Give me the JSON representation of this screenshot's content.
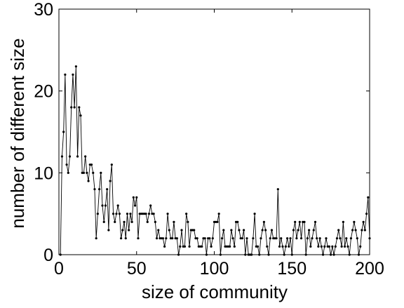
{
  "chart_data": {
    "type": "line",
    "title": "",
    "xlabel": "size of community",
    "ylabel": "number of different size",
    "xlim": [
      0,
      200
    ],
    "ylim": [
      0,
      30
    ],
    "xticks": [
      0,
      50,
      100,
      150,
      200
    ],
    "yticks": [
      0,
      10,
      20,
      30
    ],
    "grid": false,
    "legend": "none",
    "line_color": "#000000",
    "series": [
      {
        "x": [
          1,
          2,
          3,
          4,
          5,
          6,
          7,
          8,
          9,
          10,
          11,
          12,
          13,
          14,
          15,
          16,
          17,
          18,
          19,
          20,
          21,
          22,
          23,
          24,
          25,
          26,
          27,
          28,
          29,
          30,
          31,
          32,
          33,
          34,
          35,
          36,
          37,
          38,
          39,
          40,
          41,
          42,
          43,
          44,
          45,
          46,
          47,
          48,
          49,
          50,
          51,
          52,
          53,
          54,
          55,
          56,
          57,
          58,
          59,
          60,
          61,
          62,
          63,
          64,
          65,
          66,
          67,
          68,
          69,
          70,
          71,
          72,
          73,
          74,
          75,
          76,
          77,
          78,
          79,
          80,
          81,
          82,
          83,
          84,
          85,
          86,
          87,
          88,
          89,
          90,
          91,
          92,
          93,
          94,
          95,
          96,
          97,
          98,
          99,
          100,
          101,
          102,
          103,
          104,
          105,
          106,
          107,
          108,
          109,
          110,
          111,
          112,
          113,
          114,
          115,
          116,
          117,
          118,
          119,
          120,
          121,
          122,
          123,
          124,
          125,
          126,
          127,
          128,
          129,
          130,
          131,
          132,
          133,
          134,
          135,
          136,
          137,
          138,
          139,
          140,
          141,
          142,
          143,
          144,
          145,
          146,
          147,
          148,
          149,
          150,
          151,
          152,
          153,
          154,
          155,
          156,
          157,
          158,
          159,
          160,
          161,
          162,
          163,
          164,
          165,
          166,
          167,
          168,
          169,
          170,
          171,
          172,
          173,
          174,
          175,
          176,
          177,
          178,
          179,
          180,
          181,
          182,
          183,
          184,
          185,
          186,
          187,
          188,
          189,
          190,
          191,
          192,
          193,
          194,
          195,
          196,
          197,
          198,
          199,
          200
        ],
        "values": [
          0,
          12,
          15,
          22,
          11,
          10,
          12,
          18,
          22,
          18,
          23,
          12,
          18,
          17,
          10,
          10,
          12,
          10,
          9,
          11,
          11,
          10,
          8,
          2,
          5,
          8,
          10,
          6,
          4,
          6,
          8,
          3,
          9,
          11,
          5,
          4,
          5,
          6,
          5,
          2,
          3,
          4,
          2,
          5,
          3,
          5,
          4,
          7,
          6,
          7,
          2,
          5,
          5,
          5,
          5,
          5,
          4,
          5,
          6,
          5,
          5,
          4,
          2,
          3,
          2,
          2,
          2,
          1,
          2,
          5,
          3,
          2,
          2,
          4,
          2,
          2,
          0,
          1,
          3,
          1,
          1,
          5,
          4,
          1,
          3,
          3,
          3,
          2,
          2,
          1,
          1,
          1,
          2,
          2,
          0,
          2,
          2,
          1,
          2,
          4,
          4,
          4,
          5,
          0,
          2,
          3,
          1,
          1,
          1,
          1,
          3,
          2,
          1,
          4,
          4,
          3,
          2,
          2,
          3,
          0,
          2,
          0,
          0,
          0,
          2,
          5,
          1,
          1,
          0,
          2,
          3,
          4,
          3,
          1,
          0,
          2,
          3,
          2,
          2,
          2,
          8,
          1,
          2,
          1,
          0,
          1,
          2,
          1,
          2,
          0,
          3,
          4,
          2,
          3,
          4,
          2,
          4,
          4,
          0,
          2,
          3,
          1,
          2,
          3,
          4,
          2,
          1,
          2,
          1,
          0,
          1,
          2,
          1,
          1,
          0,
          1,
          0,
          1,
          2,
          3,
          2,
          1,
          4,
          1,
          2,
          1,
          0,
          2,
          3,
          4,
          3,
          2,
          0,
          1,
          3,
          4,
          3,
          5,
          7,
          2
        ]
      }
    ]
  }
}
